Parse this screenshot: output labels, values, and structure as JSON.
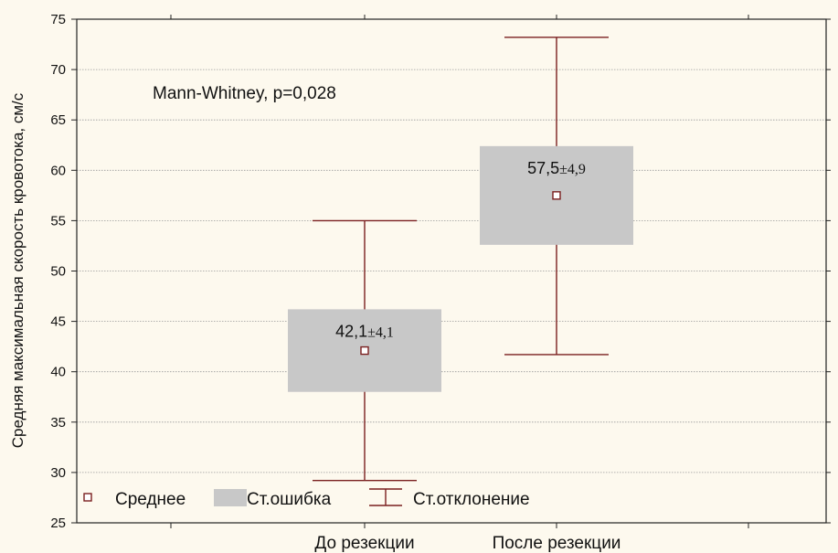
{
  "chart_data": {
    "type": "box",
    "categories": [
      "До резекции",
      "После резекции"
    ],
    "ylabel": "Средняя максимальная скорость кровотока, см/с",
    "xlabel": "",
    "ylim": [
      25,
      75
    ],
    "yticks": [
      25,
      30,
      35,
      40,
      45,
      50,
      55,
      60,
      65,
      70,
      75
    ],
    "grid": true,
    "annotation": "Mann-Whitney, p=0,028",
    "boxes": [
      {
        "category": "До резекции",
        "mean": 42.1,
        "se_low": 38.0,
        "se_high": 46.2,
        "sd_low": 29.2,
        "sd_high": 55.0,
        "label_main": "42,1",
        "label_pm": "±4,1"
      },
      {
        "category": "После резекции",
        "mean": 57.5,
        "se_low": 52.6,
        "se_high": 62.4,
        "sd_low": 41.7,
        "sd_high": 73.2,
        "label_main": "57,5",
        "label_pm": "±4,9"
      }
    ],
    "legend": {
      "placement": "bottom-left",
      "items": [
        "Среднее",
        "Ст.ошибка",
        "Ст.отклонение"
      ]
    },
    "colors": {
      "whisker": "#7a1f1f",
      "box_fill": "#c8c8c8",
      "mean_marker": "#7a1f1f",
      "grid": "#9a9a9a",
      "background": "#fdf9ee"
    }
  }
}
